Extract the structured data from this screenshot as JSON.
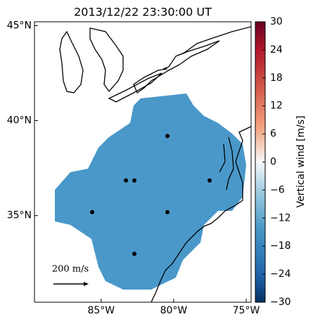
{
  "chart_data": {
    "type": "map",
    "title": "2013/12/22 23:30:00 UT",
    "xlim": [
      -89.6,
      -74.66
    ],
    "ylim": [
      30.44,
      45.2
    ],
    "xticks": [
      {
        "value": -85,
        "label": "85°W"
      },
      {
        "value": -80,
        "label": "80°W"
      },
      {
        "value": -75,
        "label": "75°W"
      }
    ],
    "yticks": [
      {
        "value": 35,
        "label": "35°N"
      },
      {
        "value": 40,
        "label": "40°N"
      },
      {
        "value": 45,
        "label": "45°N"
      }
    ],
    "sites": {
      "lon": [
        -80.43,
        -83.29,
        -82.71,
        -77.52,
        -85.62,
        -80.43,
        -82.71
      ],
      "lat": [
        39.19,
        36.85,
        36.85,
        36.85,
        35.18,
        35.18,
        32.99
      ],
      "color": "#000000"
    },
    "field_color": "#4a98c9",
    "scale_label": "200 m/s",
    "colorbar": {
      "label": "Vertical wind [m/s]",
      "lim": [
        -30,
        30
      ],
      "ticks": [
        {
          "value": -30,
          "label": "−30"
        },
        {
          "value": -24,
          "label": "−24"
        },
        {
          "value": -18,
          "label": "−18"
        },
        {
          "value": -12,
          "label": "−12"
        },
        {
          "value": -6,
          "label": "−6"
        },
        0,
        6,
        12,
        18,
        24,
        30
      ]
    }
  }
}
